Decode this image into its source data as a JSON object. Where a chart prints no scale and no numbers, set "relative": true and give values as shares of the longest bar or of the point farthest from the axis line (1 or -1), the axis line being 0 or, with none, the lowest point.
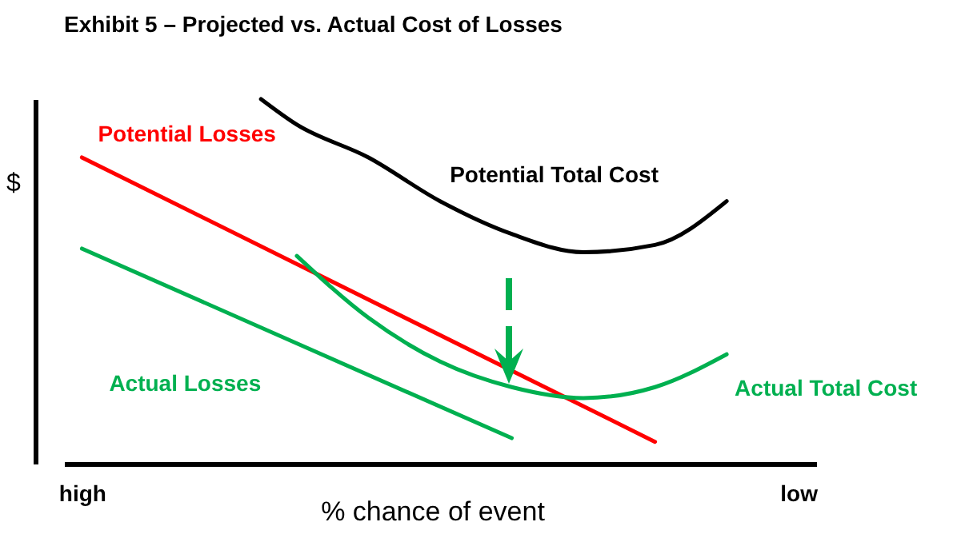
{
  "chart_data": {
    "type": "line",
    "title": "Exhibit 5 – Projected vs. Actual Cost of Losses",
    "xlabel": "% chance of event",
    "ylabel": "$",
    "relative": true,
    "categories": [
      "high",
      null,
      null,
      null,
      null,
      null,
      null,
      null,
      null,
      null,
      null,
      null,
      null,
      null,
      null,
      null,
      null,
      null,
      null,
      null,
      "low"
    ],
    "series": [
      {
        "name": "Potential Total Cost",
        "color": "#000000",
        "values": [
          null,
          null,
          null,
          null,
          null,
          1.0,
          0.93,
          null,
          0.84,
          null,
          0.72,
          null,
          0.63,
          null,
          0.58,
          null,
          0.6,
          null,
          0.72,
          null,
          null
        ]
      },
      {
        "name": "Potential Losses",
        "color": "#ff0000",
        "values": [
          0.84,
          null,
          null,
          null,
          null,
          null,
          null,
          null,
          null,
          null,
          null,
          null,
          null,
          null,
          null,
          null,
          0.06,
          null,
          null,
          null,
          null
        ]
      },
      {
        "name": "Actual Total Cost",
        "color": "#00b050",
        "values": [
          null,
          null,
          null,
          null,
          null,
          null,
          0.57,
          null,
          0.4,
          null,
          0.28,
          null,
          0.21,
          null,
          0.18,
          null,
          0.21,
          null,
          0.3,
          null,
          null
        ]
      },
      {
        "name": "Actual Losses",
        "color": "#00b050",
        "values": [
          0.59,
          null,
          null,
          null,
          null,
          null,
          null,
          null,
          null,
          null,
          null,
          null,
          0.07,
          null,
          null,
          null,
          null,
          null,
          null,
          null,
          null
        ]
      }
    ]
  }
}
